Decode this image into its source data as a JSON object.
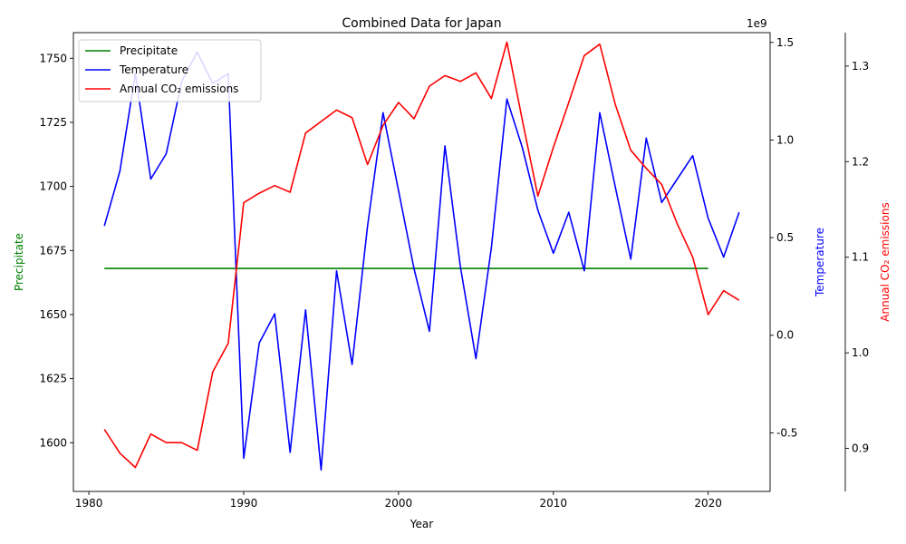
{
  "chart_data": {
    "type": "line",
    "title": "Combined Data for Japan",
    "xlabel": "Year",
    "xlim": [
      1979,
      2024
    ],
    "xticks": [
      1980,
      1990,
      2000,
      2010,
      2020
    ],
    "grid": false,
    "legend": "top-left",
    "axes": [
      {
        "id": "precip",
        "label": "Precipitate",
        "color": "#008000",
        "side": "left",
        "ylim": [
          1581,
          1760
        ],
        "ticks": [
          1600,
          1625,
          1650,
          1675,
          1700,
          1725,
          1750
        ]
      },
      {
        "id": "temp",
        "label": "Temperature",
        "color": "#0000ff",
        "side": "right",
        "ylim": [
          -0.8,
          1.55
        ],
        "ticks": [
          -0.5,
          0.0,
          0.5,
          1.0,
          1.5
        ],
        "offset_text": "1e9"
      },
      {
        "id": "co2",
        "label": "Annual CO₂ emissions",
        "color": "#ff0000",
        "side": "right-outer",
        "ylim": [
          0.855,
          1.335
        ],
        "ticks": [
          0.9,
          1.0,
          1.1,
          1.2,
          1.3
        ]
      }
    ],
    "series": [
      {
        "name": "Precipitate",
        "axis": "precip",
        "x": [
          1981,
          2020
        ],
        "y": [
          1668,
          1668
        ]
      },
      {
        "name": "Temperature",
        "axis": "temp",
        "x": [
          1981,
          1982,
          1983,
          1984,
          1985,
          1986,
          1987,
          1988,
          1989,
          1990,
          1991,
          1992,
          1993,
          1994,
          1995,
          1996,
          1997,
          1998,
          1999,
          2000,
          2001,
          2002,
          2003,
          2004,
          2005,
          2006,
          2007,
          2008,
          2009,
          2010,
          2011,
          2012,
          2013,
          2014,
          2015,
          2016,
          2017,
          2018,
          2019,
          2020,
          2021,
          2022
        ],
        "y": [
          0.56,
          0.84,
          1.34,
          0.8,
          0.93,
          1.3,
          1.45,
          1.29,
          1.34,
          -0.63,
          -0.04,
          0.11,
          -0.6,
          0.13,
          -0.69,
          0.33,
          -0.15,
          0.56,
          1.14,
          0.74,
          0.34,
          0.02,
          0.97,
          0.35,
          -0.12,
          0.45,
          1.21,
          0.96,
          0.64,
          0.42,
          0.63,
          0.33,
          1.14,
          0.76,
          0.39,
          1.01,
          0.68,
          0.8,
          0.92,
          0.6,
          0.4,
          0.63
        ]
      },
      {
        "name": "Annual CO₂ emissions",
        "axis": "co2",
        "x": [
          1981,
          1982,
          1983,
          1984,
          1985,
          1986,
          1987,
          1988,
          1989,
          1990,
          1991,
          1992,
          1993,
          1994,
          1995,
          1996,
          1997,
          1998,
          1999,
          2000,
          2001,
          2002,
          2003,
          2004,
          2005,
          2006,
          2007,
          2008,
          2009,
          2010,
          2011,
          2012,
          2013,
          2014,
          2015,
          2016,
          2017,
          2018,
          2019,
          2020,
          2021,
          2022
        ],
        "y": [
          0.92,
          0.895,
          0.88,
          0.915,
          0.906,
          0.906,
          0.898,
          0.98,
          1.01,
          1.157,
          1.167,
          1.175,
          1.168,
          1.23,
          1.242,
          1.254,
          1.246,
          1.197,
          1.238,
          1.262,
          1.245,
          1.279,
          1.29,
          1.284,
          1.293,
          1.266,
          1.325,
          1.243,
          1.164,
          1.215,
          1.262,
          1.311,
          1.323,
          1.26,
          1.212,
          1.193,
          1.176,
          1.135,
          1.1,
          1.04,
          1.065,
          1.055
        ]
      }
    ]
  }
}
